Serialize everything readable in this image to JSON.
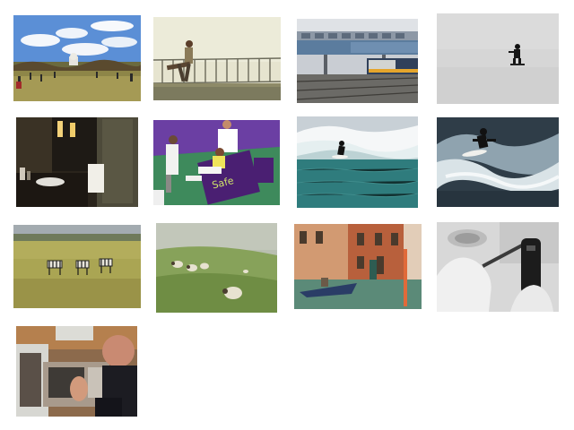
{
  "gallery": {
    "thumbnails": [
      {
        "subject": "park-lawn-capitol"
      },
      {
        "subject": "skateboarder-railing"
      },
      {
        "subject": "train-station-bridge"
      },
      {
        "subject": "snowboarder-snow"
      },
      {
        "subject": "hotel-bathroom"
      },
      {
        "subject": "tennis-player-courtside"
      },
      {
        "subject": "surfer-wave"
      },
      {
        "subject": "surfer-river-wave"
      },
      {
        "subject": "zebras-field"
      },
      {
        "subject": "sheep-foggy-hill"
      },
      {
        "subject": "venice-canal-boat"
      },
      {
        "subject": "hand-wii-remote"
      },
      {
        "subject": "man-microwave-kitchen"
      }
    ]
  }
}
